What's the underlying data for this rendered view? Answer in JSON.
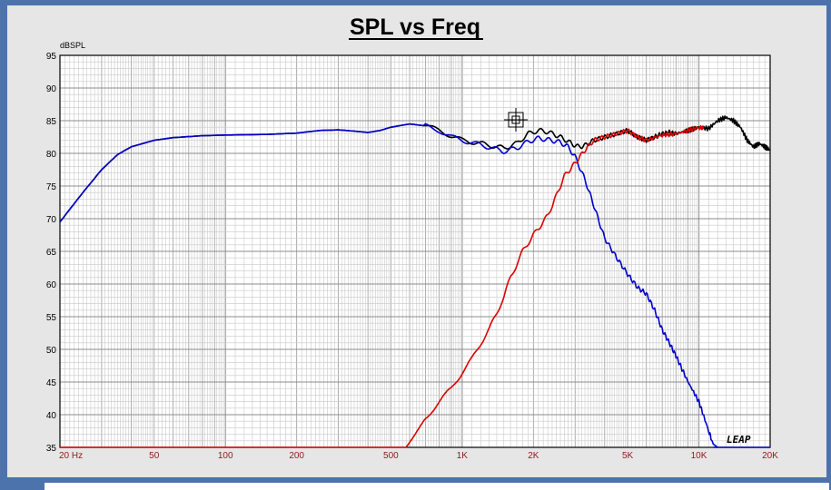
{
  "chart_data": {
    "type": "line",
    "title": "SPL vs Freq",
    "ylabel": "dBSPL",
    "xlabel": "",
    "x_scale": "log",
    "xlim": [
      20,
      20000
    ],
    "ylim": [
      35,
      95
    ],
    "grid": true,
    "y_ticks": [
      "35",
      "40",
      "45",
      "50",
      "55",
      "60",
      "65",
      "70",
      "75",
      "80",
      "85",
      "90",
      "95"
    ],
    "x_ticks": [
      {
        "label": "20  Hz",
        "value": 20
      },
      {
        "label": "50",
        "value": 50
      },
      {
        "label": "100",
        "value": 100
      },
      {
        "label": "200",
        "value": 200
      },
      {
        "label": "500",
        "value": 500
      },
      {
        "label": "1K",
        "value": 1000
      },
      {
        "label": "2K",
        "value": 2000
      },
      {
        "label": "5K",
        "value": 5000
      },
      {
        "label": "10K",
        "value": 10000
      },
      {
        "label": "20K",
        "value": 20000
      }
    ],
    "series": [
      {
        "color": "#000000",
        "points": [
          [
            20,
            69.5
          ],
          [
            25,
            74
          ],
          [
            30,
            77.5
          ],
          [
            35,
            79.8
          ],
          [
            40,
            81
          ],
          [
            50,
            82
          ],
          [
            60,
            82.4
          ],
          [
            80,
            82.7
          ],
          [
            100,
            82.8
          ],
          [
            150,
            82.9
          ],
          [
            200,
            83.1
          ],
          [
            250,
            83.5
          ],
          [
            300,
            83.6
          ],
          [
            350,
            83.4
          ],
          [
            400,
            83.2
          ],
          [
            450,
            83.5
          ],
          [
            500,
            84
          ],
          [
            600,
            84.5
          ],
          [
            700,
            84.2
          ],
          [
            800,
            83.5
          ],
          [
            900,
            82.7
          ],
          [
            1000,
            82
          ],
          [
            1200,
            81.5
          ],
          [
            1400,
            81
          ],
          [
            1500,
            80.8
          ],
          [
            1700,
            81.5
          ],
          [
            1900,
            83
          ],
          [
            2100,
            83.5
          ],
          [
            2300,
            83.3
          ],
          [
            2600,
            82.5
          ],
          [
            2900,
            81.5
          ],
          [
            3100,
            81
          ],
          [
            3300,
            81.2
          ],
          [
            3600,
            82
          ],
          [
            4000,
            82.5
          ],
          [
            4500,
            83
          ],
          [
            5000,
            83.5
          ],
          [
            5500,
            82.5
          ],
          [
            6000,
            82
          ],
          [
            6500,
            82.5
          ],
          [
            7000,
            83
          ],
          [
            7500,
            83.2
          ],
          [
            8000,
            83
          ],
          [
            9000,
            83.5
          ],
          [
            10000,
            84
          ],
          [
            11000,
            83.8
          ],
          [
            12000,
            85
          ],
          [
            13000,
            85.5
          ],
          [
            14000,
            85
          ],
          [
            15000,
            84
          ],
          [
            16000,
            82
          ],
          [
            17000,
            81
          ],
          [
            18000,
            81.5
          ],
          [
            19000,
            81
          ],
          [
            20000,
            80.5
          ]
        ]
      },
      {
        "color": "#0000cc",
        "points": [
          [
            20,
            69.5
          ],
          [
            25,
            74
          ],
          [
            30,
            77.5
          ],
          [
            35,
            79.8
          ],
          [
            40,
            81
          ],
          [
            50,
            82
          ],
          [
            60,
            82.4
          ],
          [
            80,
            82.7
          ],
          [
            100,
            82.8
          ],
          [
            150,
            82.9
          ],
          [
            200,
            83.1
          ],
          [
            250,
            83.5
          ],
          [
            300,
            83.6
          ],
          [
            350,
            83.4
          ],
          [
            400,
            83.2
          ],
          [
            450,
            83.5
          ],
          [
            500,
            84
          ],
          [
            600,
            84.5
          ],
          [
            700,
            84.2
          ],
          [
            800,
            83.5
          ],
          [
            900,
            82.5
          ],
          [
            1000,
            82
          ],
          [
            1200,
            81.3
          ],
          [
            1400,
            80.6
          ],
          [
            1500,
            80.3
          ],
          [
            1700,
            80.8
          ],
          [
            1900,
            81.8
          ],
          [
            2100,
            82.3
          ],
          [
            2300,
            82.1
          ],
          [
            2600,
            81.7
          ],
          [
            2800,
            81
          ],
          [
            3000,
            79.5
          ],
          [
            3300,
            76
          ],
          [
            3600,
            72
          ],
          [
            4000,
            67
          ],
          [
            4500,
            64
          ],
          [
            5000,
            61.5
          ],
          [
            5500,
            59.5
          ],
          [
            6000,
            58.5
          ],
          [
            6500,
            56
          ],
          [
            7000,
            53
          ],
          [
            7500,
            51
          ],
          [
            8000,
            49
          ],
          [
            9000,
            45
          ],
          [
            10000,
            42
          ],
          [
            11000,
            37.5
          ],
          [
            11500,
            35.5
          ],
          [
            12000,
            35
          ]
        ]
      },
      {
        "color": "#dd0000",
        "points": [
          [
            580,
            35
          ],
          [
            620,
            36.5
          ],
          [
            700,
            39.5
          ],
          [
            800,
            42
          ],
          [
            900,
            44
          ],
          [
            1000,
            46.5
          ],
          [
            1100,
            48.5
          ],
          [
            1200,
            51
          ],
          [
            1300,
            53
          ],
          [
            1500,
            58
          ],
          [
            1600,
            61
          ],
          [
            1700,
            63
          ],
          [
            1800,
            65
          ],
          [
            2000,
            67.5
          ],
          [
            2100,
            68.5
          ],
          [
            2300,
            70.5
          ],
          [
            2500,
            73.5
          ],
          [
            2700,
            76.5
          ],
          [
            3000,
            78.5
          ],
          [
            3300,
            80.5
          ],
          [
            3600,
            82
          ],
          [
            4000,
            82.5
          ],
          [
            4500,
            83
          ],
          [
            5000,
            83.5
          ],
          [
            5500,
            82.5
          ],
          [
            6000,
            82
          ],
          [
            7000,
            82.8
          ],
          [
            8000,
            83
          ],
          [
            9000,
            83.5
          ],
          [
            10000,
            84
          ],
          [
            10500,
            83.8
          ]
        ]
      },
      {
        "color": "#dd0000",
        "points": [
          [
            20,
            35
          ],
          [
            580,
            35
          ]
        ]
      },
      {
        "color": "#0000cc",
        "points": [
          [
            11500,
            35
          ],
          [
            20000,
            35
          ]
        ]
      }
    ]
  },
  "watermark": "LEAP"
}
